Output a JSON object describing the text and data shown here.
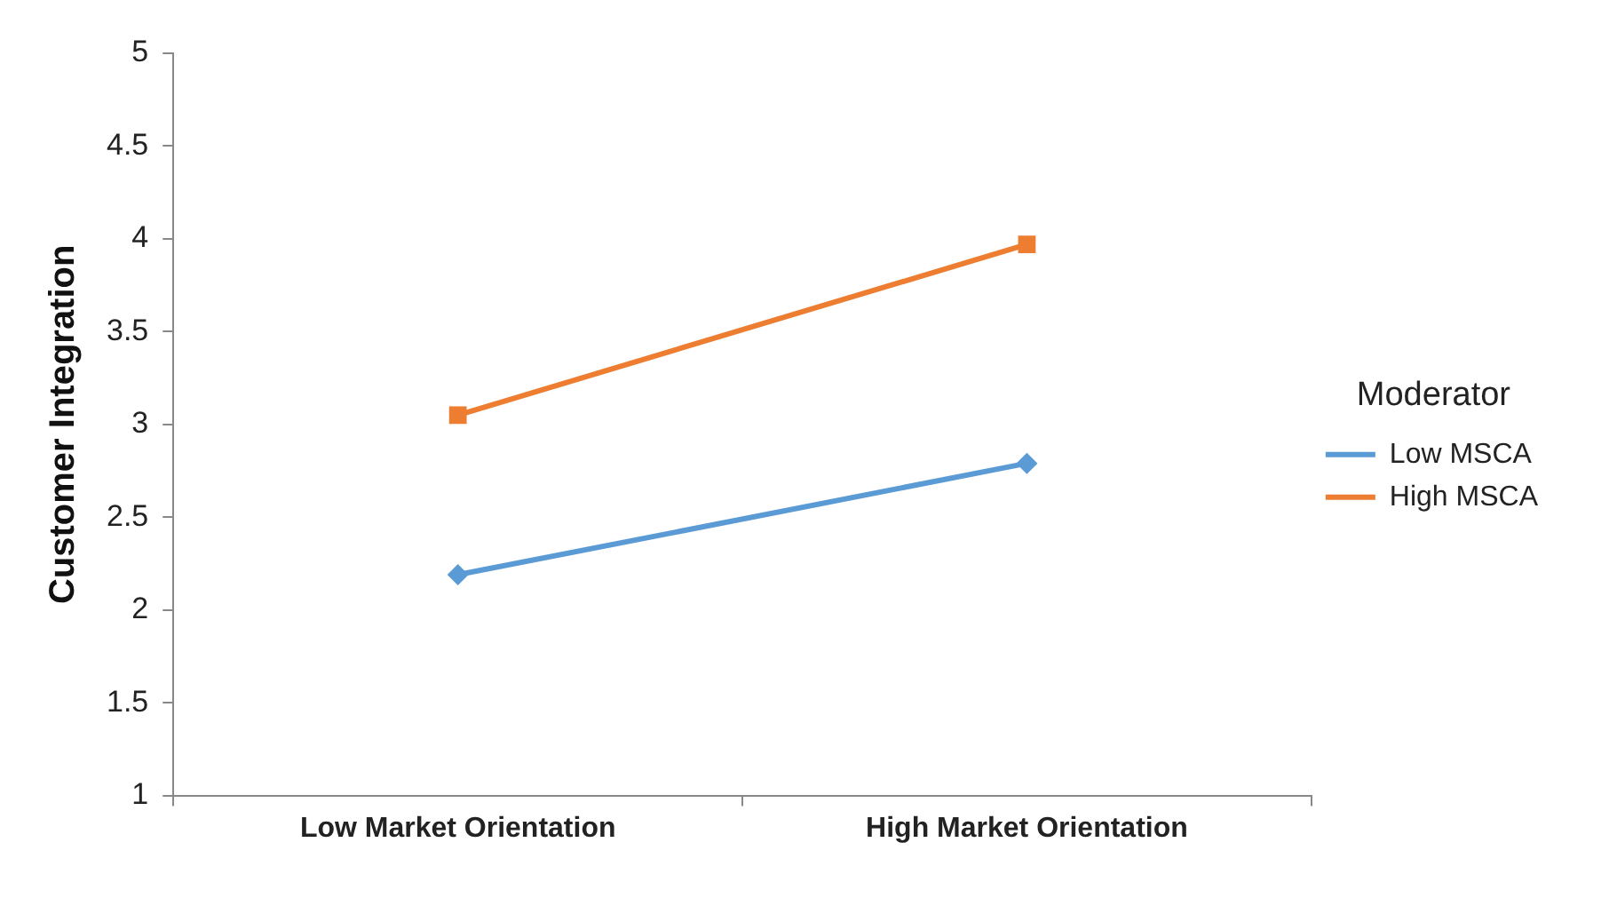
{
  "chart_data": {
    "type": "line",
    "ylabel": "Customer Integration",
    "legend_title": "Moderator",
    "categories": [
      "Low Market Orientation",
      "High Market Orientation"
    ],
    "series": [
      {
        "name": "Low MSCA",
        "color": "#5b9bd5",
        "values": [
          2.19,
          2.79
        ],
        "marker": "diamond"
      },
      {
        "name": "High MSCA",
        "color": "#ed7d31",
        "values": [
          3.05,
          3.97
        ],
        "marker": "square"
      }
    ],
    "ylim": [
      1,
      5
    ],
    "yticks": [
      1,
      1.5,
      2,
      2.5,
      3,
      3.5,
      4,
      4.5,
      5
    ],
    "grid": false,
    "legend": "right",
    "line_style": "solid"
  }
}
